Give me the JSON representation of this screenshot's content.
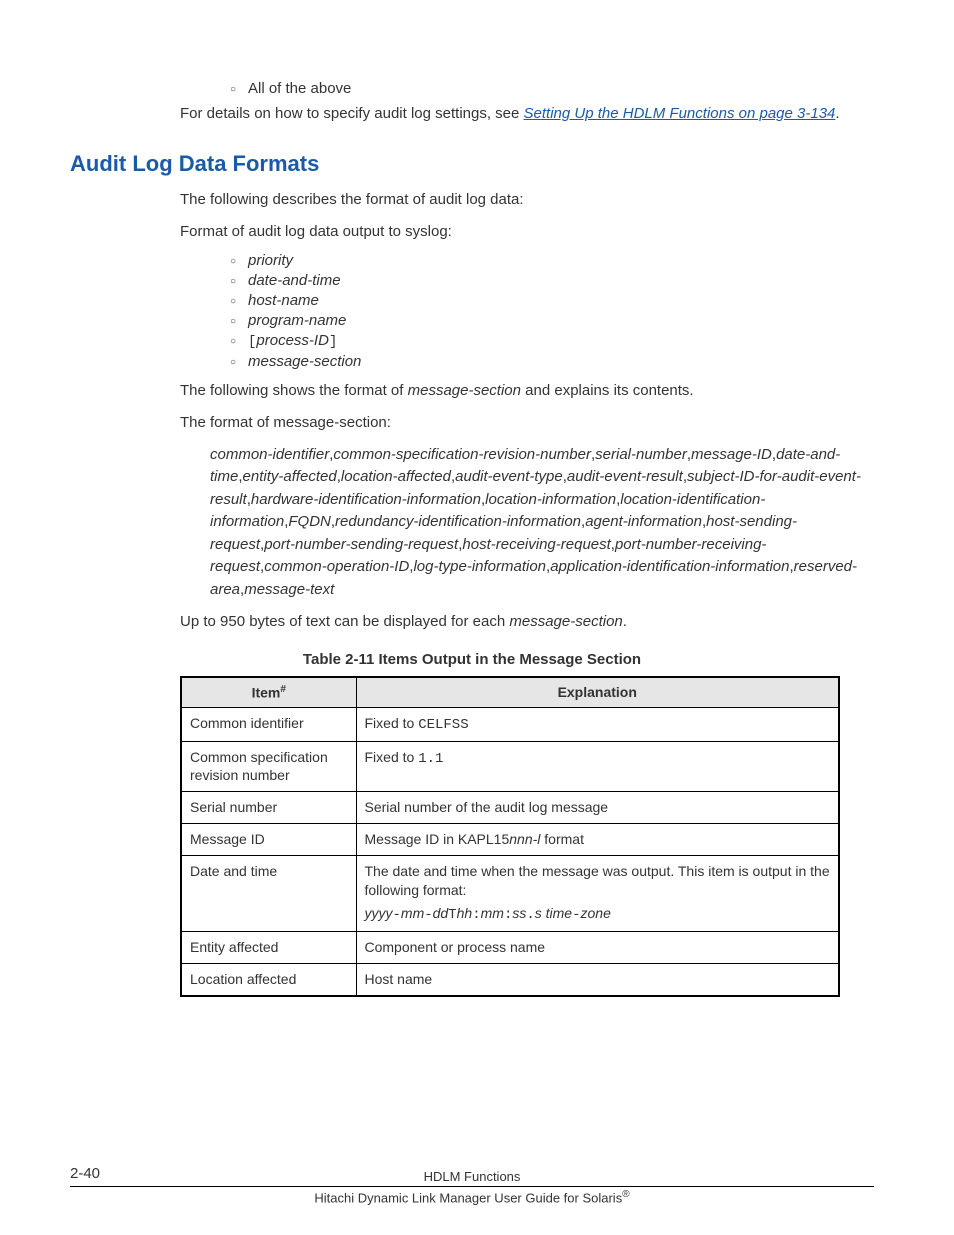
{
  "top_bullet": "All of the above",
  "details_para_pre": "For details on how to specify audit log settings, see ",
  "details_link": "Setting Up the HDLM Functions on page 3-134",
  "details_para_post": ".",
  "heading": "Audit Log Data Formats",
  "intro1": "The following describes the format of audit log data:",
  "intro2": "Format of audit log data output to syslog:",
  "fields": {
    "f0": "priority",
    "f1": "date-and-time",
    "f2": "host-name",
    "f3": "program-name",
    "f4_open": "[",
    "f4": "process-ID",
    "f4_close": "]",
    "f5": "message-section"
  },
  "msg_intro": "The following shows the format of ",
  "msg_intro_em": "message-section",
  "msg_intro_post": " and explains its contents.",
  "format_label": "The format of message-section:",
  "format_text": "common-identifier,common-specification-revision-number,serial-number,message-ID,date-and-time,entity-affected,location-affected,audit-event-type,audit-event-result,subject-ID-for-audit-event-result,hardware-identification-information,location-information,location-identification-information,FQDN,redundancy-identification-information,agent-information,host-sending-request,port-number-sending-request,host-receiving-request,port-number-receiving-request,common-operation-ID,log-type-information,application-identification-information,reserved-area,message-text",
  "bytes_note_pre": "Up to 950 bytes of text can be displayed for each ",
  "bytes_note_em": "message-section",
  "bytes_note_post": ".",
  "table_caption": "Table 2-11 Items Output in the Message Section",
  "table": {
    "h1": "Item",
    "h1_hash": "#",
    "h2": "Explanation",
    "r0c0": "Common identifier",
    "r0c1_pre": "Fixed to ",
    "r0c1_code": "CELFSS",
    "r1c0": "Common specification revision number",
    "r1c1_pre": "Fixed to ",
    "r1c1_code": "1.1",
    "r2c0": "Serial number",
    "r2c1": "Serial number of the audit log message",
    "r3c0": "Message ID",
    "r3c1_pre": "Message ID in KAPL15",
    "r3c1_em": "nnn-l",
    "r3c1_post": " format",
    "r4c0": "Date and time",
    "r4c1_l1": "The date and time when the message was output. This item is output in the following format:",
    "r4c1_l2": "yyyy-mm-ddThh:mm:ss.s time-zone",
    "r5c0": "Entity affected",
    "r5c1": "Component or process name",
    "r6c0": "Location affected",
    "r6c1": "Host name"
  },
  "footer": {
    "pagenum": "2-40",
    "title": "HDLM Functions",
    "book": "Hitachi Dynamic Link Manager User Guide for Solaris",
    "reg": "®"
  }
}
